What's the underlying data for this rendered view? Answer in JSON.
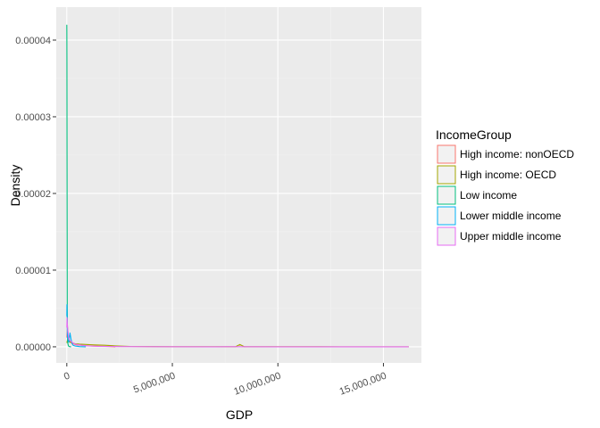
{
  "chart_data": {
    "type": "density",
    "xlabel": "GDP",
    "ylabel": "Density",
    "xlim": [
      -500000,
      16800000
    ],
    "ylim": [
      -2.1e-06,
      4.43e-05
    ],
    "x_ticks": [
      0,
      5000000,
      10000000,
      15000000
    ],
    "x_tick_labels": [
      "0",
      "5,000,000",
      "10,000,000",
      "15,000,000"
    ],
    "y_ticks": [
      0,
      1e-05,
      2e-05,
      3e-05,
      4e-05
    ],
    "y_tick_labels": [
      "0.00000",
      "0.00001",
      "0.00002",
      "0.00003",
      "0.00004"
    ],
    "grid": true,
    "legend": {
      "title": "IncomeGroup",
      "placement": "right"
    },
    "series": [
      {
        "name": "High income: nonOECD",
        "color": "#F8766D",
        "x": [
          0,
          30000,
          60000,
          100000,
          150000,
          220000,
          300000,
          400000,
          500000,
          700000,
          900000,
          1200000,
          1500000,
          2000000,
          2300000
        ],
        "y": [
          1.2e-06,
          2.6e-06,
          1.8e-06,
          1e-06,
          7e-07,
          5e-07,
          4e-07,
          3e-07,
          2.5e-07,
          2e-07,
          1.5e-07,
          1e-07,
          8e-08,
          4e-08,
          0
        ]
      },
      {
        "name": "High income: OECD",
        "color": "#A3A500",
        "x": [
          0,
          40000,
          80000,
          150000,
          250000,
          400000,
          600000,
          900000,
          1300000,
          1800000,
          2300000,
          3000000,
          5000000,
          8000000,
          8200000,
          8400000,
          12000000,
          16200000
        ],
        "y": [
          5e-07,
          1e-06,
          8e-07,
          6e-07,
          5e-07,
          4e-07,
          3.5e-07,
          3e-07,
          2.5e-07,
          2e-07,
          1.2e-07,
          5e-08,
          2e-08,
          2e-08,
          3e-07,
          2e-08,
          1e-08,
          0
        ]
      },
      {
        "name": "Low income",
        "color": "#00BF7D",
        "x": [
          0,
          2000,
          5000,
          10000,
          20000,
          30000,
          50000,
          80000,
          120000,
          200000
        ],
        "y": [
          4.2e-05,
          4.1e-05,
          3.76e-05,
          2.5e-05,
          6e-06,
          1.5e-06,
          4e-07,
          1e-07,
          3e-08,
          0
        ]
      },
      {
        "name": "Lower middle income",
        "color": "#00B0F6",
        "x": [
          0,
          5000,
          15000,
          30000,
          60000,
          100000,
          150000,
          200000,
          250000,
          300000,
          400000,
          600000,
          900000
        ],
        "y": [
          4e-06,
          5.5e-06,
          3.5e-06,
          1.5e-06,
          8e-07,
          6e-07,
          1.8e-06,
          1e-06,
          4e-07,
          2e-07,
          1e-07,
          3e-08,
          0
        ]
      },
      {
        "name": "Upper middle income",
        "color": "#E76BF3",
        "x": [
          0,
          10000,
          25000,
          50000,
          90000,
          150000,
          250000,
          350000,
          500000,
          700000,
          1000000,
          1500000,
          2500000,
          4000000,
          7000000,
          8000000,
          10000000,
          13000000,
          16200000
        ],
        "y": [
          2.5e-06,
          3.8e-06,
          3e-06,
          2e-06,
          1.2e-06,
          8e-07,
          6e-07,
          4e-07,
          3e-07,
          2e-07,
          1.2e-07,
          6e-08,
          3e-08,
          1e-08,
          5e-09,
          2e-08,
          5e-09,
          3e-09,
          0
        ]
      }
    ]
  }
}
